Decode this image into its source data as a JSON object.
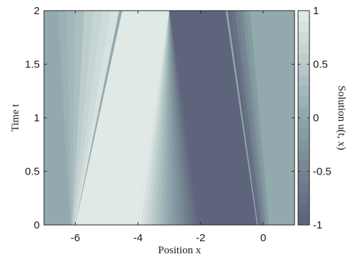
{
  "chart_data": {
    "type": "heatmap",
    "title": "",
    "xlabel": "Position x",
    "ylabel": "Time t",
    "colorbar_label": "Solution u(t, x)",
    "xlim": [
      -7,
      1
    ],
    "ylim": [
      0,
      2
    ],
    "x_ticks": [
      -6,
      -4,
      -2,
      0
    ],
    "x_tick_labels": [
      "-6",
      "-4",
      "-2",
      "0"
    ],
    "y_ticks": [
      0,
      0.5,
      1,
      1.5,
      2
    ],
    "y_tick_labels": [
      "0",
      "0.5",
      "1",
      "1.5",
      "2"
    ],
    "colorbar_range": [
      -1,
      1
    ],
    "colorbar_ticks": [
      -1,
      -0.5,
      0,
      0.5,
      1
    ],
    "colorbar_tick_labels": [
      "-1",
      "-0.5",
      "0",
      "0.5",
      "1"
    ],
    "color_levels": 20,
    "colormap": {
      "low": "#5a6079",
      "mid": "#8ea6aa",
      "high": "#e4ece9"
    },
    "grid": false,
    "solution_features": [
      {
        "name": "plateau",
        "value": 1,
        "x_at_t0": [
          -6,
          -4
        ],
        "x_at_t2": [
          -4.5,
          -3
        ]
      },
      {
        "name": "rarefaction",
        "value_range": [
          1,
          -1
        ],
        "x_at_t0": [
          -4,
          -2
        ],
        "x_at_t2": [
          -3,
          -3
        ]
      },
      {
        "name": "trough",
        "value": -1,
        "x_at_t0": [
          -2,
          -0.2
        ],
        "x_at_t2": [
          -3,
          -1.2
        ]
      },
      {
        "name": "background",
        "value": 0
      }
    ]
  }
}
